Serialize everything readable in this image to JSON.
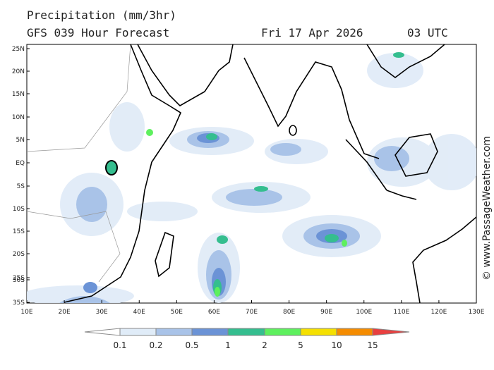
{
  "header": {
    "title": "Precipitation (mm/3hr)",
    "forecast": "GFS 039 Hour Forecast",
    "date": "Fri 17 Apr 2026",
    "time": "03 UTC"
  },
  "map": {
    "lat_labels": [
      "25N",
      "20N",
      "15N",
      "10N",
      "5N",
      "EQ",
      "5S",
      "10S",
      "15S",
      "20S",
      "25S",
      "30S",
      "35S"
    ],
    "lon_labels": [
      "10E",
      "20E",
      "30E",
      "40E",
      "50E",
      "60E",
      "70E",
      "80E",
      "90E",
      "100E",
      "110E",
      "120E",
      "130E"
    ]
  },
  "legend": {
    "labels": [
      "0.1",
      "0.2",
      "0.5",
      "1",
      "2",
      "5",
      "10",
      "15"
    ]
  },
  "watermark": "© www.PassageWeather.com"
}
